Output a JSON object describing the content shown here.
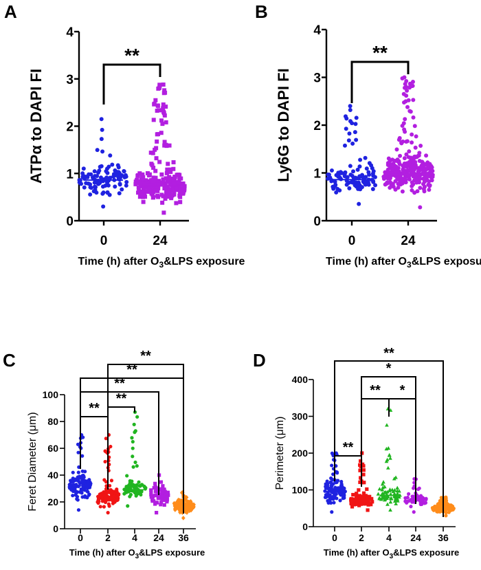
{
  "chart_data": [
    {
      "id": "A",
      "type": "scatter",
      "panel_label": "A",
      "ylabel": "ATPα to DAPI FI",
      "xlabel_pre": "Time (h) after O",
      "xlabel_sub": "3",
      "xlabel_post": "&LPS exposure",
      "categories": [
        "0",
        "24"
      ],
      "ylim": [
        0,
        4
      ],
      "yticks": [
        "0",
        "1",
        "2",
        "3",
        "4"
      ],
      "series": [
        {
          "name": "0",
          "color": "#1f22e0",
          "marker": "circle",
          "mean": 0.86,
          "min": 0.3,
          "max": 2.15,
          "n": 110
        },
        {
          "name": "24",
          "color": "#b21fe0",
          "marker": "square",
          "mean": 0.74,
          "min": 0.17,
          "max": 2.88,
          "n": 240
        }
      ],
      "comparisons": [
        {
          "from": 0,
          "to": 1,
          "label": "**"
        }
      ]
    },
    {
      "id": "B",
      "type": "scatter",
      "panel_label": "B",
      "ylabel": "Ly6G to DAPI FI",
      "xlabel_pre": "Time (h) after O",
      "xlabel_sub": "3",
      "xlabel_post": "&LPS exposure",
      "categories": [
        "0",
        "24"
      ],
      "ylim": [
        0,
        4
      ],
      "yticks": [
        "0",
        "1",
        "2",
        "3",
        "4"
      ],
      "series": [
        {
          "name": "0",
          "color": "#1f22e0",
          "marker": "circle",
          "mean": 0.86,
          "min": 0.35,
          "max": 2.4,
          "n": 110
        },
        {
          "name": "24",
          "color": "#b21fe0",
          "marker": "circle",
          "mean": 0.97,
          "min": 0.28,
          "max": 3.0,
          "n": 300
        }
      ],
      "comparisons": [
        {
          "from": 0,
          "to": 1,
          "label": "**"
        }
      ]
    },
    {
      "id": "C",
      "type": "scatter",
      "panel_label": "C",
      "ylabel": "Feret Diameter (μm)",
      "xlabel_pre": "Time (h) after O",
      "xlabel_sub": "3",
      "xlabel_post": "&LPS exposure",
      "categories": [
        "0",
        "2",
        "4",
        "24",
        "36"
      ],
      "ylim": [
        0,
        100
      ],
      "yticks": [
        "0",
        "20",
        "40",
        "60",
        "80",
        "100"
      ],
      "series": [
        {
          "name": "0",
          "color": "#1f22e0",
          "marker": "circle",
          "mean": 32,
          "min": 14,
          "max": 70,
          "n": 120
        },
        {
          "name": "2",
          "color": "#f01414",
          "marker": "circle",
          "mean": 24,
          "min": 12,
          "max": 70,
          "n": 120
        },
        {
          "name": "4",
          "color": "#21b521",
          "marker": "circle",
          "mean": 29,
          "min": 17,
          "max": 87,
          "n": 80
        },
        {
          "name": "24",
          "color": "#b21fe0",
          "marker": "square",
          "mean": 24,
          "min": 12,
          "max": 40,
          "n": 60
        },
        {
          "name": "36",
          "color": "#ff8c1a",
          "marker": "diamond",
          "mean": 17,
          "min": 8,
          "max": 27,
          "n": 120
        }
      ],
      "comparisons": [
        {
          "from": 0,
          "to": 1,
          "label": "**"
        },
        {
          "from": 1,
          "to": 2,
          "label": "**"
        },
        {
          "from": 0,
          "to": 3,
          "label": "**"
        },
        {
          "from": 0,
          "to": 4,
          "label": "**"
        },
        {
          "from": 1,
          "to": 4,
          "label": "**"
        }
      ]
    },
    {
      "id": "D",
      "type": "scatter",
      "panel_label": "D",
      "ylabel": "Perimeter (μm)",
      "xlabel_pre": "Time (h) after O",
      "xlabel_sub": "3",
      "xlabel_post": "&LPS exposure",
      "categories": [
        "0",
        "2",
        "4",
        "24",
        "36"
      ],
      "ylim": [
        0,
        400
      ],
      "yticks": [
        "0",
        "100",
        "200",
        "300",
        "400"
      ],
      "series": [
        {
          "name": "0",
          "color": "#1f22e0",
          "marker": "circle",
          "mean": 95,
          "min": 40,
          "max": 200,
          "n": 120
        },
        {
          "name": "2",
          "color": "#f01414",
          "marker": "square",
          "mean": 72,
          "min": 45,
          "max": 200,
          "n": 120
        },
        {
          "name": "4",
          "color": "#21b521",
          "marker": "triangle",
          "mean": 85,
          "min": 45,
          "max": 320,
          "n": 80
        },
        {
          "name": "24",
          "color": "#b21fe0",
          "marker": "circle",
          "mean": 72,
          "min": 40,
          "max": 130,
          "n": 60
        },
        {
          "name": "36",
          "color": "#ff8c1a",
          "marker": "circle",
          "mean": 50,
          "min": 30,
          "max": 80,
          "n": 120
        }
      ],
      "comparisons": [
        {
          "from": 0,
          "to": 1,
          "label": "**"
        },
        {
          "from": 1,
          "to": 2,
          "label": "**"
        },
        {
          "from": 2,
          "to": 3,
          "label": "*"
        },
        {
          "from": 1,
          "to": 3,
          "label": "*"
        },
        {
          "from": 0,
          "to": 4,
          "label": "**"
        }
      ]
    }
  ]
}
